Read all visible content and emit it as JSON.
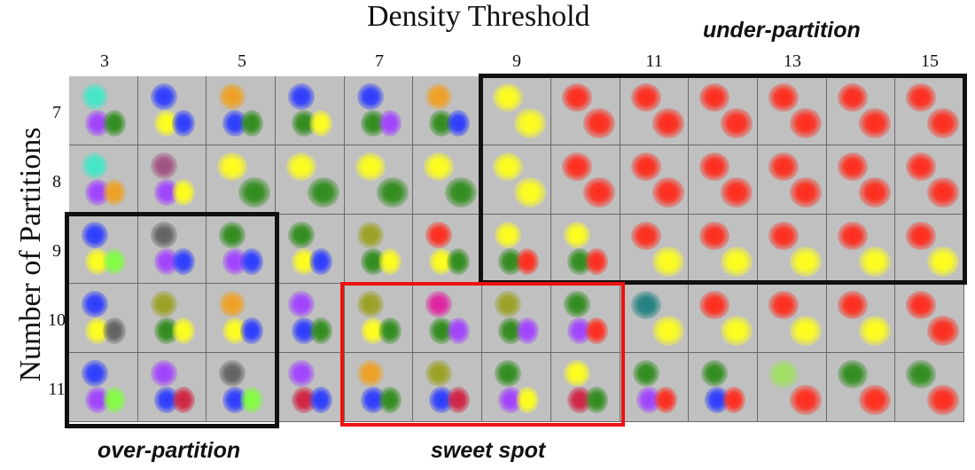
{
  "title": "Density Threshold",
  "ylabel": "Number of Partitions",
  "x_ticks": [
    "3",
    "5",
    "7",
    "9",
    "11",
    "13",
    "15"
  ],
  "y_ticks": [
    "7",
    "8",
    "9",
    "10",
    "11"
  ],
  "regions": {
    "under": {
      "label": "under-partition",
      "color": "#111111",
      "rows": [
        7,
        9
      ],
      "density_cols": [
        9,
        15
      ]
    },
    "over": {
      "label": "over-partition",
      "color": "#111111",
      "rows": [
        9,
        11
      ],
      "density_cols": [
        3,
        5
      ]
    },
    "sweet": {
      "label": "sweet spot",
      "color": "#ee1111",
      "rows": [
        10,
        11
      ],
      "density_cols": [
        7,
        10
      ]
    }
  },
  "colors": {
    "red": "#ff2a1a",
    "yellow": "#ffff1a",
    "green": "#2e8b1a",
    "blue": "#2a3aff",
    "purple": "#a040ff",
    "cyan": "#40e8c8",
    "orange": "#f0a020",
    "olive": "#9aa020",
    "teal": "#208080",
    "magenta": "#e020a0",
    "crimson": "#d02040",
    "lime": "#80ff40",
    "gray": "#606060",
    "pink": "#ff60c0",
    "plum": "#a05080",
    "salmon": "#ff8060",
    "lightgreen": "#a0e060"
  },
  "cells": [
    [
      "cyan/purple/green",
      "blue/yellow/blue",
      "orange/blue/green",
      "blue/green/yellow",
      "blue/green/purple",
      "orange/green/blue",
      "yellow/yellow",
      "red/red",
      "red/red",
      "red/red",
      "red/red",
      "red/red",
      "red/red"
    ],
    [
      "cyan/purple/orange",
      "plum/purple/yellow",
      "yellow/green",
      "yellow/green",
      "yellow/green",
      "yellow/green",
      "yellow/yellow",
      "red/red",
      "red/red",
      "red/red",
      "red/red",
      "red/red",
      "red/red"
    ],
    [
      "blue/yellow/lime",
      "gray/purple/blue",
      "green/purple/blue",
      "green/yellow/blue",
      "olive/green/yellow",
      "red/yellow/green",
      "yellow/green/red",
      "yellow/green/red",
      "red/yellow",
      "red/yellow",
      "red/yellow",
      "red/yellow",
      "red/yellow"
    ],
    [
      "blue/yellow/gray",
      "olive/green/yellow",
      "orange/yellow/blue",
      "purple/blue/green",
      "olive/yellow/green",
      "magenta/green/purple",
      "olive/green/purple",
      "green/purple/red",
      "teal/yellow",
      "red/yellow",
      "red/yellow",
      "red/yellow",
      "red/red"
    ],
    [
      "blue/purple/lime",
      "purple/blue/crimson",
      "gray/blue/lime",
      "purple/crimson/blue",
      "orange/blue/green",
      "olive/blue/crimson",
      "green/purple/yellow",
      "yellow/crimson/green",
      "green/purple/red",
      "green/blue/red",
      "lightgreen/red",
      "green/red",
      "green/red"
    ]
  ]
}
